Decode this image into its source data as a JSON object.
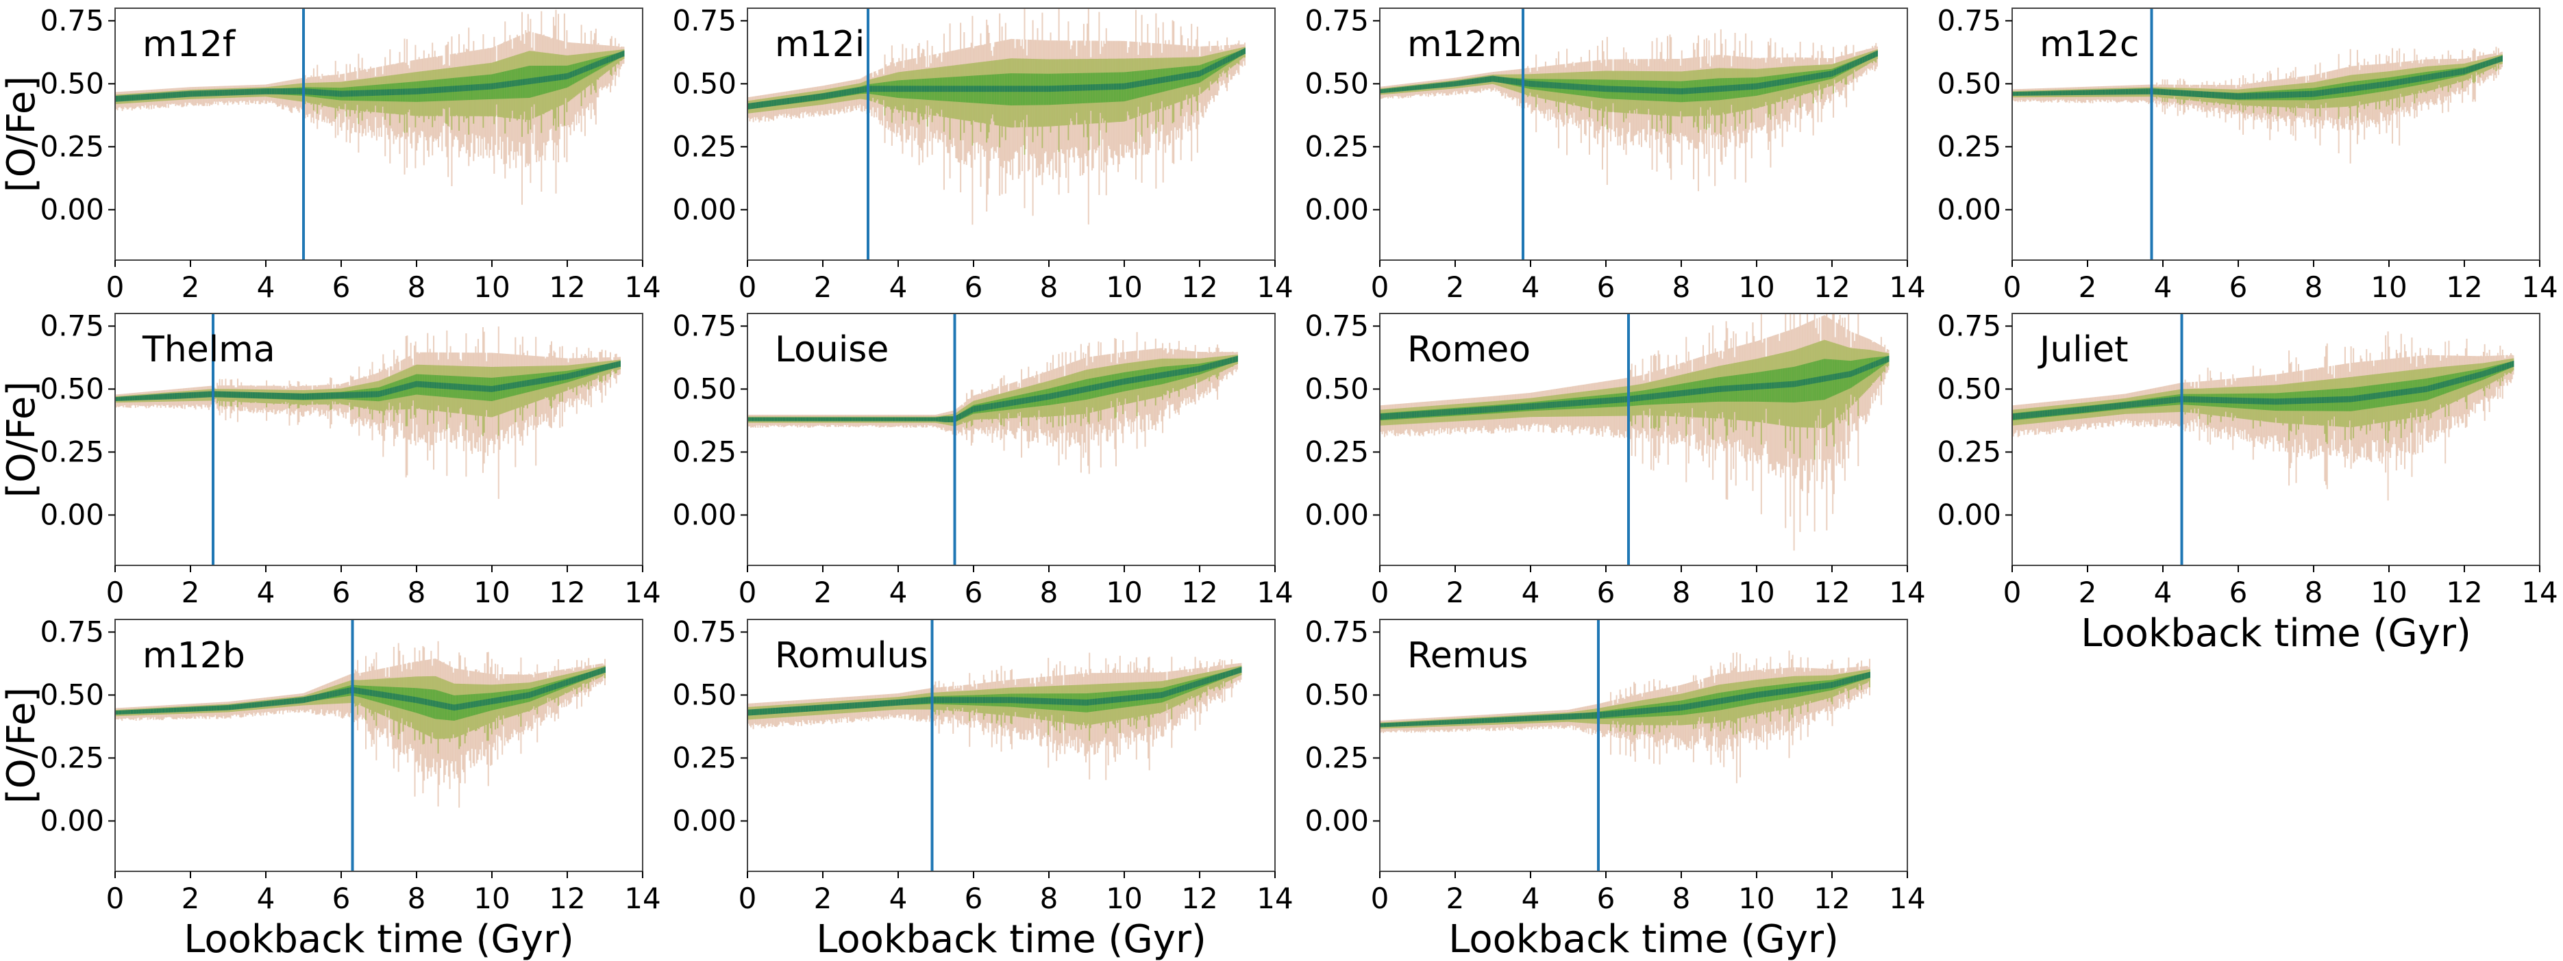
{
  "figure": {
    "ylabel": "[O/Fe]",
    "xlabel": "Lookback time (Gyr)",
    "xticks": [
      0,
      2,
      4,
      6,
      8,
      10,
      12,
      14
    ],
    "yticks": [
      "0.00",
      "0.25",
      "0.50",
      "0.75"
    ],
    "colors": {
      "band_outer": "#d9a98c",
      "band_mid": "#a8b85a",
      "band_core": "#5aa83c",
      "band_dense": "#1e7a5a",
      "vline": "#1f77b4",
      "frame": "#444444"
    }
  },
  "chart_data": [
    {
      "type": "line",
      "name": "m12f",
      "xlim": [
        0,
        14
      ],
      "ylim": [
        -0.2,
        0.8
      ],
      "xlabel": "",
      "ylabel": "[O/Fe]",
      "vline": 5.0,
      "end": 13.5,
      "median": [
        [
          0,
          0.44
        ],
        [
          2,
          0.46
        ],
        [
          4,
          0.47
        ],
        [
          5,
          0.47
        ],
        [
          6,
          0.46
        ],
        [
          8,
          0.47
        ],
        [
          10,
          0.49
        ],
        [
          12,
          0.53
        ],
        [
          13.5,
          0.62
        ]
      ],
      "spread": [
        [
          0,
          0.03
        ],
        [
          4,
          0.03
        ],
        [
          5,
          0.06
        ],
        [
          8,
          0.14
        ],
        [
          10,
          0.17
        ],
        [
          11,
          0.22
        ],
        [
          12,
          0.15
        ],
        [
          13.5,
          0.03
        ]
      ]
    },
    {
      "type": "line",
      "name": "m12i",
      "xlim": [
        0,
        14
      ],
      "ylim": [
        -0.2,
        0.8
      ],
      "xlabel": "",
      "ylabel": "",
      "vline": 3.2,
      "end": 13.2,
      "median": [
        [
          0,
          0.41
        ],
        [
          2,
          0.45
        ],
        [
          3.2,
          0.48
        ],
        [
          6,
          0.48
        ],
        [
          8,
          0.48
        ],
        [
          10,
          0.49
        ],
        [
          12,
          0.54
        ],
        [
          13.2,
          0.63
        ]
      ],
      "spread": [
        [
          0,
          0.04
        ],
        [
          3,
          0.05
        ],
        [
          4,
          0.12
        ],
        [
          7,
          0.22
        ],
        [
          10,
          0.2
        ],
        [
          12,
          0.12
        ],
        [
          13.2,
          0.03
        ]
      ]
    },
    {
      "type": "line",
      "name": "m12m",
      "xlim": [
        0,
        14
      ],
      "ylim": [
        -0.2,
        0.8
      ],
      "xlabel": "",
      "ylabel": "",
      "vline": 3.8,
      "end": 13.2,
      "median": [
        [
          0,
          0.47
        ],
        [
          2,
          0.5
        ],
        [
          3,
          0.52
        ],
        [
          4,
          0.5
        ],
        [
          6,
          0.48
        ],
        [
          8,
          0.47
        ],
        [
          10,
          0.49
        ],
        [
          12,
          0.54
        ],
        [
          13.2,
          0.62
        ]
      ],
      "spread": [
        [
          0,
          0.02
        ],
        [
          3,
          0.03
        ],
        [
          4,
          0.07
        ],
        [
          6,
          0.13
        ],
        [
          9,
          0.15
        ],
        [
          11,
          0.1
        ],
        [
          13.2,
          0.03
        ]
      ]
    },
    {
      "type": "line",
      "name": "m12c",
      "xlim": [
        0,
        14
      ],
      "ylim": [
        -0.2,
        0.8
      ],
      "xlabel": "",
      "ylabel": "",
      "vline": 3.7,
      "end": 13.0,
      "median": [
        [
          0,
          0.46
        ],
        [
          3.7,
          0.47
        ],
        [
          6,
          0.45
        ],
        [
          8,
          0.46
        ],
        [
          10,
          0.5
        ],
        [
          12,
          0.55
        ],
        [
          13,
          0.6
        ]
      ],
      "spread": [
        [
          0,
          0.02
        ],
        [
          3.7,
          0.03
        ],
        [
          6,
          0.05
        ],
        [
          9,
          0.1
        ],
        [
          11,
          0.08
        ],
        [
          13,
          0.03
        ]
      ]
    },
    {
      "type": "line",
      "name": "Thelma",
      "xlim": [
        0,
        14
      ],
      "ylim": [
        -0.2,
        0.8
      ],
      "xlabel": "",
      "ylabel": "[O/Fe]",
      "vline": 2.6,
      "end": 13.4,
      "median": [
        [
          0,
          0.46
        ],
        [
          2.6,
          0.48
        ],
        [
          5,
          0.47
        ],
        [
          7,
          0.48
        ],
        [
          8,
          0.52
        ],
        [
          10,
          0.5
        ],
        [
          12,
          0.55
        ],
        [
          13.4,
          0.6
        ]
      ],
      "spread": [
        [
          0,
          0.02
        ],
        [
          3,
          0.04
        ],
        [
          6,
          0.05
        ],
        [
          8,
          0.14
        ],
        [
          10,
          0.16
        ],
        [
          12,
          0.08
        ],
        [
          13.4,
          0.03
        ]
      ]
    },
    {
      "type": "line",
      "name": "Louise",
      "xlim": [
        0,
        14
      ],
      "ylim": [
        -0.2,
        0.8
      ],
      "xlabel": "",
      "ylabel": "",
      "vline": 5.5,
      "end": 13.0,
      "median": [
        [
          0,
          0.38
        ],
        [
          3,
          0.38
        ],
        [
          5.5,
          0.38
        ],
        [
          6,
          0.42
        ],
        [
          8,
          0.47
        ],
        [
          10,
          0.53
        ],
        [
          12,
          0.58
        ],
        [
          13,
          0.62
        ]
      ],
      "spread": [
        [
          0,
          0.02
        ],
        [
          5,
          0.02
        ],
        [
          6,
          0.06
        ],
        [
          9,
          0.14
        ],
        [
          11,
          0.12
        ],
        [
          13,
          0.03
        ]
      ]
    },
    {
      "type": "line",
      "name": "Romeo",
      "xlim": [
        0,
        14
      ],
      "ylim": [
        -0.2,
        0.8
      ],
      "xlabel": "",
      "ylabel": "",
      "vline": 6.6,
      "end": 13.5,
      "median": [
        [
          0,
          0.39
        ],
        [
          3,
          0.42
        ],
        [
          6.6,
          0.46
        ],
        [
          9,
          0.5
        ],
        [
          11,
          0.52
        ],
        [
          12.5,
          0.56
        ],
        [
          13.5,
          0.62
        ]
      ],
      "spread": [
        [
          0,
          0.05
        ],
        [
          4,
          0.06
        ],
        [
          7,
          0.1
        ],
        [
          10,
          0.2
        ],
        [
          11.8,
          0.28
        ],
        [
          13,
          0.12
        ],
        [
          13.5,
          0.04
        ]
      ]
    },
    {
      "type": "line",
      "name": "Juliet",
      "xlim": [
        0,
        14
      ],
      "ylim": [
        -0.2,
        0.8
      ],
      "xlabel": "Lookback time (Gyr)",
      "ylabel": "",
      "vline": 4.5,
      "end": 13.3,
      "median": [
        [
          0,
          0.39
        ],
        [
          2,
          0.42
        ],
        [
          4.5,
          0.46
        ],
        [
          7,
          0.45
        ],
        [
          9,
          0.46
        ],
        [
          11,
          0.5
        ],
        [
          12.5,
          0.56
        ],
        [
          13.3,
          0.6
        ]
      ],
      "spread": [
        [
          0,
          0.05
        ],
        [
          3,
          0.05
        ],
        [
          5,
          0.08
        ],
        [
          9,
          0.16
        ],
        [
          11,
          0.15
        ],
        [
          13.3,
          0.04
        ]
      ]
    },
    {
      "type": "line",
      "name": "m12b",
      "xlim": [
        0,
        14
      ],
      "ylim": [
        -0.2,
        0.8
      ],
      "xlabel": "Lookback time (Gyr)",
      "ylabel": "[O/Fe]",
      "vline": 6.3,
      "end": 13.0,
      "median": [
        [
          0,
          0.43
        ],
        [
          3,
          0.45
        ],
        [
          5,
          0.48
        ],
        [
          6.3,
          0.52
        ],
        [
          8,
          0.48
        ],
        [
          9,
          0.45
        ],
        [
          11,
          0.5
        ],
        [
          13,
          0.6
        ]
      ],
      "spread": [
        [
          0,
          0.02
        ],
        [
          5,
          0.03
        ],
        [
          6.5,
          0.08
        ],
        [
          8.5,
          0.2
        ],
        [
          10,
          0.12
        ],
        [
          13,
          0.03
        ]
      ]
    },
    {
      "type": "line",
      "name": "Romulus",
      "xlim": [
        0,
        14
      ],
      "ylim": [
        -0.2,
        0.8
      ],
      "xlabel": "Lookback time (Gyr)",
      "ylabel": "",
      "vline": 4.9,
      "end": 13.1,
      "median": [
        [
          0,
          0.43
        ],
        [
          3,
          0.46
        ],
        [
          4.9,
          0.48
        ],
        [
          7,
          0.48
        ],
        [
          9,
          0.47
        ],
        [
          11,
          0.5
        ],
        [
          13.1,
          0.6
        ]
      ],
      "spread": [
        [
          0,
          0.04
        ],
        [
          4,
          0.04
        ],
        [
          6,
          0.07
        ],
        [
          9,
          0.13
        ],
        [
          11,
          0.1
        ],
        [
          13.1,
          0.03
        ]
      ]
    },
    {
      "type": "line",
      "name": "Remus",
      "xlim": [
        0,
        14
      ],
      "ylim": [
        -0.2,
        0.8
      ],
      "xlabel": "Lookback time (Gyr)",
      "ylabel": "",
      "vline": 5.8,
      "end": 13.0,
      "median": [
        [
          0,
          0.38
        ],
        [
          3,
          0.4
        ],
        [
          5.8,
          0.42
        ],
        [
          8,
          0.45
        ],
        [
          10,
          0.5
        ],
        [
          12,
          0.54
        ],
        [
          13,
          0.58
        ]
      ],
      "spread": [
        [
          0,
          0.02
        ],
        [
          5,
          0.03
        ],
        [
          7,
          0.08
        ],
        [
          9,
          0.12
        ],
        [
          11,
          0.1
        ],
        [
          13,
          0.04
        ]
      ]
    }
  ]
}
